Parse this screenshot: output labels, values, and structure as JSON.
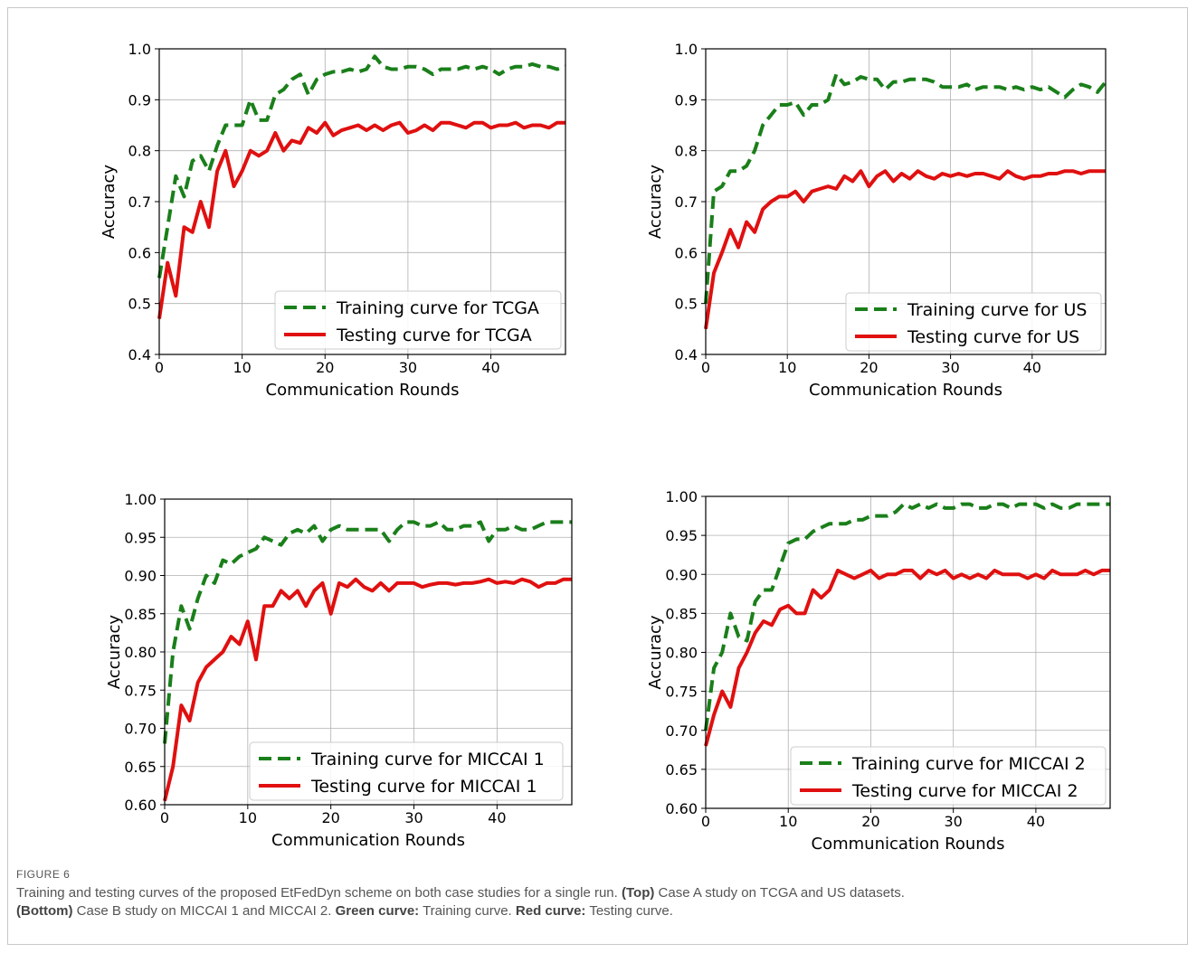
{
  "chart_data": [
    {
      "type": "line",
      "xlabel": "Communication Rounds",
      "ylabel": "Accuracy",
      "xlim": [
        0,
        49
      ],
      "ylim": [
        0.4,
        1.0
      ],
      "xticks": [
        0,
        10,
        20,
        30,
        40
      ],
      "yticks": [
        0.4,
        0.5,
        0.6,
        0.7,
        0.8,
        0.9,
        1.0
      ],
      "ytick_labels": [
        "0.4",
        "0.5",
        "0.6",
        "0.7",
        "0.8",
        "0.9",
        "1.0"
      ],
      "grid": true,
      "legend_position": "lower-right",
      "x": [
        0,
        1,
        2,
        3,
        4,
        5,
        6,
        7,
        8,
        9,
        10,
        11,
        12,
        13,
        14,
        15,
        16,
        17,
        18,
        19,
        20,
        21,
        22,
        23,
        24,
        25,
        26,
        27,
        28,
        29,
        30,
        31,
        32,
        33,
        34,
        35,
        36,
        37,
        38,
        39,
        40,
        41,
        42,
        43,
        44,
        45,
        46,
        47,
        48,
        49
      ],
      "series": [
        {
          "name": "Training curve for TCGA",
          "color": "#1a7f1a",
          "style": "dashed",
          "values": [
            0.55,
            0.65,
            0.75,
            0.71,
            0.78,
            0.79,
            0.76,
            0.81,
            0.85,
            0.85,
            0.85,
            0.9,
            0.86,
            0.86,
            0.91,
            0.92,
            0.94,
            0.95,
            0.91,
            0.94,
            0.95,
            0.955,
            0.955,
            0.96,
            0.955,
            0.96,
            0.985,
            0.965,
            0.96,
            0.96,
            0.965,
            0.965,
            0.96,
            0.95,
            0.96,
            0.96,
            0.96,
            0.965,
            0.96,
            0.965,
            0.96,
            0.95,
            0.96,
            0.965,
            0.965,
            0.97,
            0.965,
            0.965,
            0.96,
            0.965
          ]
        },
        {
          "name": "Testing curve for TCGA",
          "color": "#e01010",
          "style": "solid",
          "values": [
            0.47,
            0.58,
            0.515,
            0.65,
            0.64,
            0.7,
            0.65,
            0.76,
            0.8,
            0.73,
            0.76,
            0.8,
            0.79,
            0.8,
            0.835,
            0.8,
            0.82,
            0.815,
            0.845,
            0.835,
            0.855,
            0.83,
            0.84,
            0.845,
            0.85,
            0.84,
            0.85,
            0.84,
            0.85,
            0.855,
            0.835,
            0.84,
            0.85,
            0.84,
            0.855,
            0.855,
            0.85,
            0.845,
            0.855,
            0.855,
            0.845,
            0.85,
            0.85,
            0.855,
            0.845,
            0.85,
            0.85,
            0.845,
            0.855,
            0.855
          ]
        }
      ]
    },
    {
      "type": "line",
      "xlabel": "Communication Rounds",
      "ylabel": "Accuracy",
      "xlim": [
        0,
        49
      ],
      "ylim": [
        0.4,
        1.0
      ],
      "xticks": [
        0,
        10,
        20,
        30,
        40
      ],
      "yticks": [
        0.4,
        0.5,
        0.6,
        0.7,
        0.8,
        0.9,
        1.0
      ],
      "ytick_labels": [
        "0.4",
        "0.5",
        "0.6",
        "0.7",
        "0.8",
        "0.9",
        "1.0"
      ],
      "grid": true,
      "legend_position": "lower-right",
      "x": [
        0,
        1,
        2,
        3,
        4,
        5,
        6,
        7,
        8,
        9,
        10,
        11,
        12,
        13,
        14,
        15,
        16,
        17,
        18,
        19,
        20,
        21,
        22,
        23,
        24,
        25,
        26,
        27,
        28,
        29,
        30,
        31,
        32,
        33,
        34,
        35,
        36,
        37,
        38,
        39,
        40,
        41,
        42,
        43,
        44,
        45,
        46,
        47,
        48,
        49
      ],
      "series": [
        {
          "name": "Training curve for US",
          "color": "#1a7f1a",
          "style": "dashed",
          "values": [
            0.5,
            0.72,
            0.73,
            0.76,
            0.76,
            0.77,
            0.8,
            0.85,
            0.87,
            0.89,
            0.89,
            0.895,
            0.87,
            0.89,
            0.89,
            0.9,
            0.95,
            0.93,
            0.935,
            0.945,
            0.94,
            0.94,
            0.92,
            0.935,
            0.935,
            0.94,
            0.94,
            0.94,
            0.935,
            0.925,
            0.925,
            0.925,
            0.93,
            0.92,
            0.925,
            0.925,
            0.925,
            0.92,
            0.925,
            0.92,
            0.925,
            0.92,
            0.925,
            0.915,
            0.905,
            0.92,
            0.93,
            0.925,
            0.915,
            0.935
          ]
        },
        {
          "name": "Testing curve for US",
          "color": "#e01010",
          "style": "solid",
          "values": [
            0.45,
            0.56,
            0.6,
            0.645,
            0.61,
            0.66,
            0.64,
            0.685,
            0.7,
            0.71,
            0.71,
            0.72,
            0.7,
            0.72,
            0.725,
            0.73,
            0.725,
            0.75,
            0.74,
            0.76,
            0.73,
            0.75,
            0.76,
            0.74,
            0.755,
            0.745,
            0.76,
            0.75,
            0.745,
            0.755,
            0.75,
            0.755,
            0.75,
            0.755,
            0.755,
            0.75,
            0.745,
            0.76,
            0.75,
            0.745,
            0.75,
            0.75,
            0.755,
            0.755,
            0.76,
            0.76,
            0.755,
            0.76,
            0.76,
            0.76
          ]
        }
      ]
    },
    {
      "type": "line",
      "xlabel": "Communication Rounds",
      "ylabel": "Accuracy",
      "xlim": [
        0,
        49
      ],
      "ylim": [
        0.6,
        1.0
      ],
      "xticks": [
        0,
        10,
        20,
        30,
        40
      ],
      "yticks": [
        0.6,
        0.65,
        0.7,
        0.75,
        0.8,
        0.85,
        0.9,
        0.95,
        1.0
      ],
      "ytick_labels": [
        "0.60",
        "0.65",
        "0.70",
        "0.75",
        "0.80",
        "0.85",
        "0.90",
        "0.95",
        "1.00"
      ],
      "grid": true,
      "legend_position": "lower-right",
      "x": [
        0,
        1,
        2,
        3,
        4,
        5,
        6,
        7,
        8,
        9,
        10,
        11,
        12,
        13,
        14,
        15,
        16,
        17,
        18,
        19,
        20,
        21,
        22,
        23,
        24,
        25,
        26,
        27,
        28,
        29,
        30,
        31,
        32,
        33,
        34,
        35,
        36,
        37,
        38,
        39,
        40,
        41,
        42,
        43,
        44,
        45,
        46,
        47,
        48,
        49
      ],
      "series": [
        {
          "name": "Training curve for MICCAI 1",
          "color": "#1a7f1a",
          "style": "dashed",
          "values": [
            0.68,
            0.8,
            0.86,
            0.83,
            0.87,
            0.9,
            0.89,
            0.92,
            0.915,
            0.925,
            0.93,
            0.935,
            0.95,
            0.945,
            0.94,
            0.955,
            0.96,
            0.955,
            0.965,
            0.945,
            0.96,
            0.965,
            0.96,
            0.96,
            0.96,
            0.96,
            0.96,
            0.945,
            0.96,
            0.97,
            0.97,
            0.965,
            0.965,
            0.97,
            0.96,
            0.96,
            0.965,
            0.965,
            0.97,
            0.945,
            0.96,
            0.96,
            0.965,
            0.96,
            0.96,
            0.965,
            0.97,
            0.97,
            0.97,
            0.97
          ]
        },
        {
          "name": "Testing curve for MICCAI 1",
          "color": "#e01010",
          "style": "solid",
          "values": [
            0.605,
            0.65,
            0.73,
            0.71,
            0.76,
            0.78,
            0.79,
            0.8,
            0.82,
            0.81,
            0.84,
            0.79,
            0.86,
            0.86,
            0.88,
            0.87,
            0.88,
            0.86,
            0.88,
            0.89,
            0.85,
            0.89,
            0.885,
            0.895,
            0.885,
            0.88,
            0.89,
            0.88,
            0.89,
            0.89,
            0.89,
            0.885,
            0.888,
            0.89,
            0.89,
            0.888,
            0.89,
            0.89,
            0.892,
            0.895,
            0.89,
            0.892,
            0.89,
            0.895,
            0.892,
            0.885,
            0.89,
            0.89,
            0.895,
            0.895
          ]
        }
      ]
    },
    {
      "type": "line",
      "xlabel": "Communication Rounds",
      "ylabel": "Accuracy",
      "xlim": [
        0,
        49
      ],
      "ylim": [
        0.6,
        1.0
      ],
      "xticks": [
        0,
        10,
        20,
        30,
        40
      ],
      "yticks": [
        0.6,
        0.65,
        0.7,
        0.75,
        0.8,
        0.85,
        0.9,
        0.95,
        1.0
      ],
      "ytick_labels": [
        "0.60",
        "0.65",
        "0.70",
        "0.75",
        "0.80",
        "0.85",
        "0.90",
        "0.95",
        "1.00"
      ],
      "grid": true,
      "legend_position": "lower-right",
      "x": [
        0,
        1,
        2,
        3,
        4,
        5,
        6,
        7,
        8,
        9,
        10,
        11,
        12,
        13,
        14,
        15,
        16,
        17,
        18,
        19,
        20,
        21,
        22,
        23,
        24,
        25,
        26,
        27,
        28,
        29,
        30,
        31,
        32,
        33,
        34,
        35,
        36,
        37,
        38,
        39,
        40,
        41,
        42,
        43,
        44,
        45,
        46,
        47,
        48,
        49
      ],
      "series": [
        {
          "name": "Training curve for MICCAI 2",
          "color": "#1a7f1a",
          "style": "dashed",
          "values": [
            0.7,
            0.78,
            0.8,
            0.85,
            0.82,
            0.815,
            0.865,
            0.88,
            0.88,
            0.91,
            0.94,
            0.945,
            0.945,
            0.955,
            0.96,
            0.965,
            0.965,
            0.965,
            0.97,
            0.97,
            0.975,
            0.975,
            0.975,
            0.98,
            0.99,
            0.985,
            0.99,
            0.985,
            0.99,
            0.985,
            0.985,
            0.99,
            0.99,
            0.985,
            0.985,
            0.99,
            0.99,
            0.985,
            0.99,
            0.99,
            0.99,
            0.985,
            0.99,
            0.985,
            0.985,
            0.99,
            0.99,
            0.99,
            0.99,
            0.99
          ]
        },
        {
          "name": "Testing curve for MICCAI 2",
          "color": "#e01010",
          "style": "solid",
          "values": [
            0.68,
            0.72,
            0.75,
            0.73,
            0.78,
            0.8,
            0.825,
            0.84,
            0.835,
            0.855,
            0.86,
            0.85,
            0.85,
            0.88,
            0.87,
            0.88,
            0.905,
            0.9,
            0.895,
            0.9,
            0.905,
            0.895,
            0.9,
            0.9,
            0.905,
            0.905,
            0.895,
            0.905,
            0.9,
            0.905,
            0.895,
            0.9,
            0.895,
            0.9,
            0.895,
            0.905,
            0.9,
            0.9,
            0.9,
            0.895,
            0.9,
            0.895,
            0.905,
            0.9,
            0.9,
            0.9,
            0.905,
            0.9,
            0.905,
            0.905
          ]
        }
      ]
    }
  ],
  "caption": {
    "figure_label": "FIGURE 6",
    "line1": "Training and testing curves of the proposed EtFedDyn scheme on both case studies for a single run.",
    "top_label": "(Top)",
    "top_text": "Case A study on TCGA and US datasets.",
    "bottom_label": "(Bottom)",
    "bottom_text": "Case B study on MICCAI 1 and MICCAI 2.",
    "green_label": "Green curve:",
    "green_text": "Training curve.",
    "red_label": "Red curve:",
    "red_text": "Testing curve."
  }
}
